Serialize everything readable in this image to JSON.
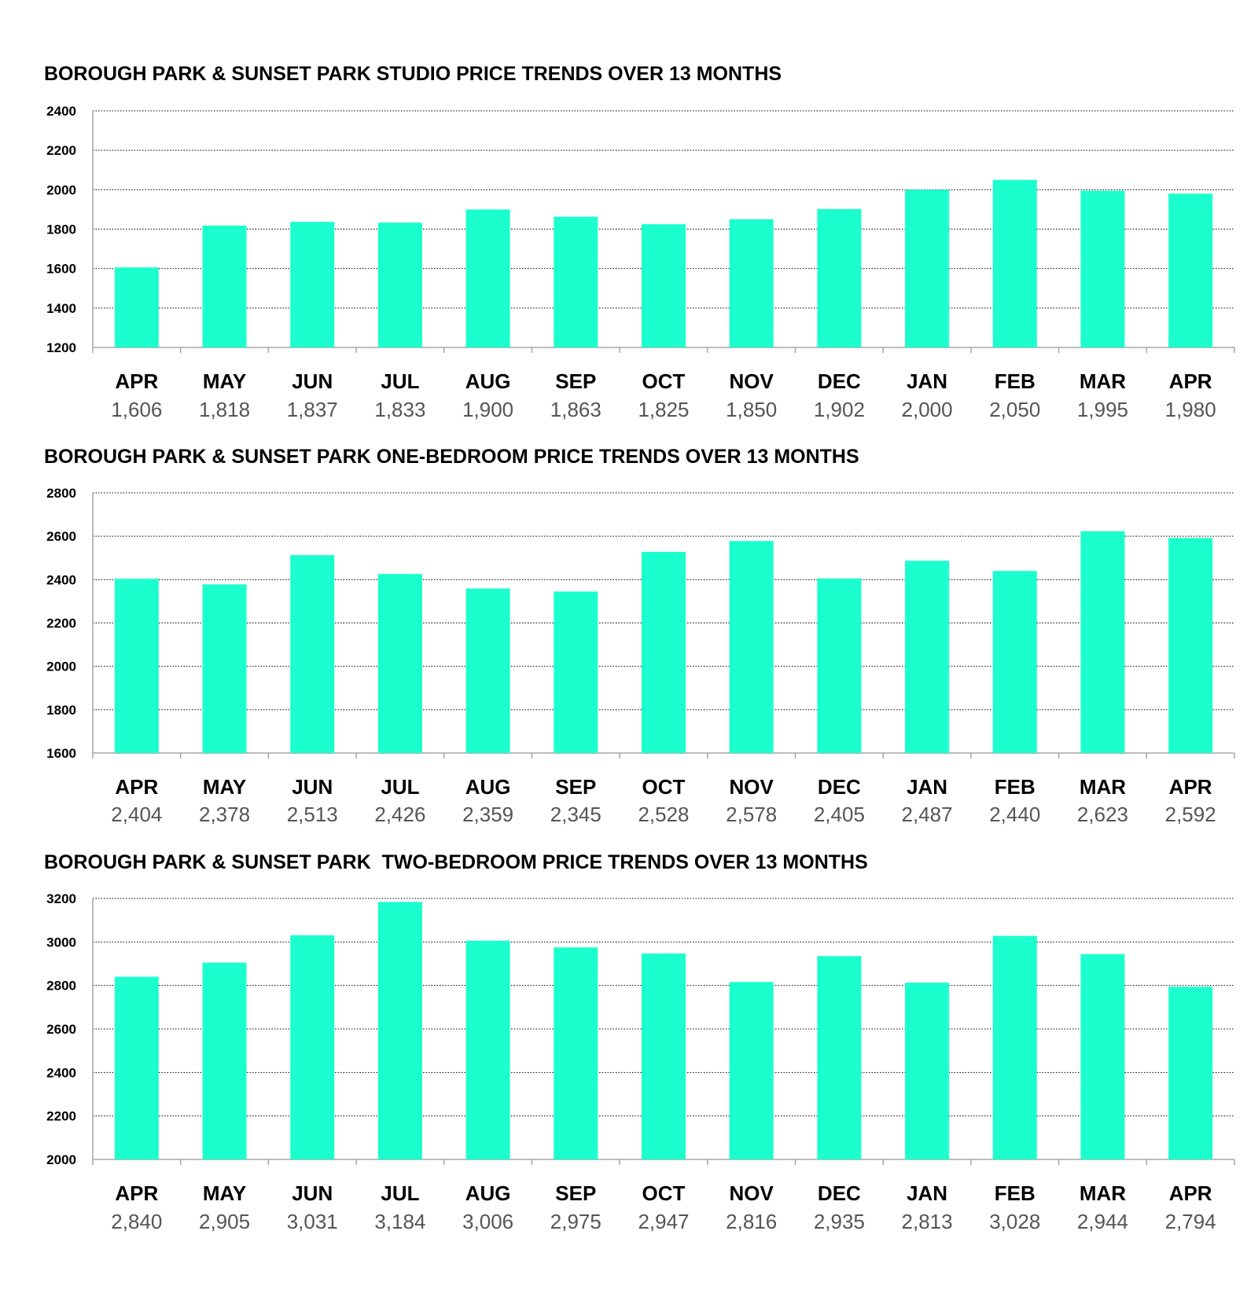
{
  "colors": {
    "bar": "#1affcd",
    "grid": "#000000",
    "axis": "#a6a6a6",
    "value_text": "#555555"
  },
  "chart_data": [
    {
      "type": "bar",
      "title": "BOROUGH PARK & SUNSET PARK STUDIO PRICE TRENDS OVER 13 MONTHS",
      "categories": [
        "APR",
        "MAY",
        "JUN",
        "JUL",
        "AUG",
        "SEP",
        "OCT",
        "NOV",
        "DEC",
        "JAN",
        "FEB",
        "MAR",
        "APR"
      ],
      "values": [
        1606,
        1818,
        1837,
        1833,
        1900,
        1863,
        1825,
        1850,
        1902,
        2000,
        2050,
        1995,
        1980
      ],
      "value_labels": [
        "1,606",
        "1,818",
        "1,837",
        "1,833",
        "1,900",
        "1,863",
        "1,825",
        "1,850",
        "1,902",
        "2,000",
        "2,050",
        "1,995",
        "1,980"
      ],
      "yticks": [
        "1200",
        "1400",
        "1600",
        "1800",
        "2000",
        "2200",
        "2400"
      ],
      "ylim": [
        1200,
        2400
      ],
      "grid": true
    },
    {
      "type": "bar",
      "title": "BOROUGH PARK & SUNSET PARK ONE-BEDROOM PRICE TRENDS OVER 13 MONTHS",
      "categories": [
        "APR",
        "MAY",
        "JUN",
        "JUL",
        "AUG",
        "SEP",
        "OCT",
        "NOV",
        "DEC",
        "JAN",
        "FEB",
        "MAR",
        "APR"
      ],
      "values": [
        2404,
        2378,
        2513,
        2426,
        2359,
        2345,
        2528,
        2578,
        2405,
        2487,
        2440,
        2623,
        2592
      ],
      "value_labels": [
        "2,404",
        "2,378",
        "2,513",
        "2,426",
        "2,359",
        "2,345",
        "2,528",
        "2,578",
        "2,405",
        "2,487",
        "2,440",
        "2,623",
        "2,592"
      ],
      "yticks": [
        "1600",
        "1800",
        "2000",
        "2200",
        "2400",
        "2600",
        "2800"
      ],
      "ylim": [
        1600,
        2800
      ],
      "grid": true
    },
    {
      "type": "bar",
      "title": "BOROUGH PARK & SUNSET PARK  TWO-BEDROOM PRICE TRENDS OVER 13 MONTHS",
      "categories": [
        "APR",
        "MAY",
        "JUN",
        "JUL",
        "AUG",
        "SEP",
        "OCT",
        "NOV",
        "DEC",
        "JAN",
        "FEB",
        "MAR",
        "APR"
      ],
      "values": [
        2840,
        2905,
        3031,
        3184,
        3006,
        2975,
        2947,
        2816,
        2935,
        2813,
        3028,
        2944,
        2794
      ],
      "value_labels": [
        "2,840",
        "2,905",
        "3,031",
        "3,184",
        "3,006",
        "2,975",
        "2,947",
        "2,816",
        "2,935",
        "2,813",
        "3,028",
        "2,944",
        "2,794"
      ],
      "yticks": [
        "2000",
        "2200",
        "2400",
        "2600",
        "2800",
        "3000",
        "3200"
      ],
      "ylim": [
        2000,
        3200
      ],
      "grid": true
    }
  ]
}
